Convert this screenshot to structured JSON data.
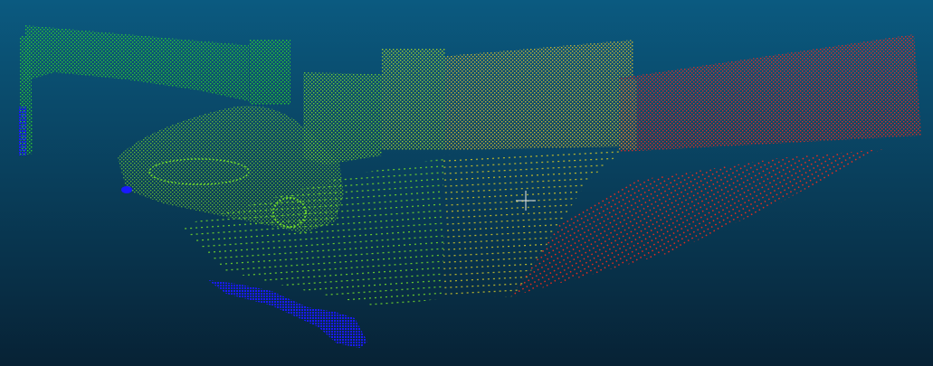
{
  "viewer": {
    "background_top": "#0b5a80",
    "background_bottom": "#072235",
    "colormap": {
      "low": "#1a1aff",
      "mid_low": "#31d92a",
      "mid": "#9bd92a",
      "mid_high": "#e6b02a",
      "high": "#ff2a1a"
    },
    "cursor_color": "#e8e8e8"
  }
}
